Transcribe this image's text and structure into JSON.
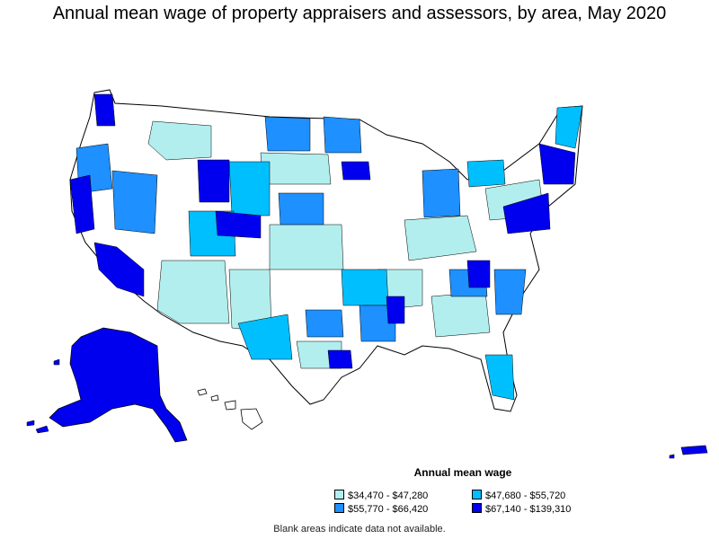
{
  "title": "Annual mean wage of property appraisers and assessors, by area, May 2020",
  "legend": {
    "title": "Annual mean wage",
    "items": [
      {
        "label": "$34,470 - $47,280",
        "color": "#b2eeee"
      },
      {
        "label": "$47,680 - $55,720",
        "color": "#00bfff"
      },
      {
        "label": "$55,770 - $66,420",
        "color": "#1e90ff"
      },
      {
        "label": "$67,140 - $139,310",
        "color": "#0000ee"
      }
    ]
  },
  "note": "Blank areas indicate data not available."
}
